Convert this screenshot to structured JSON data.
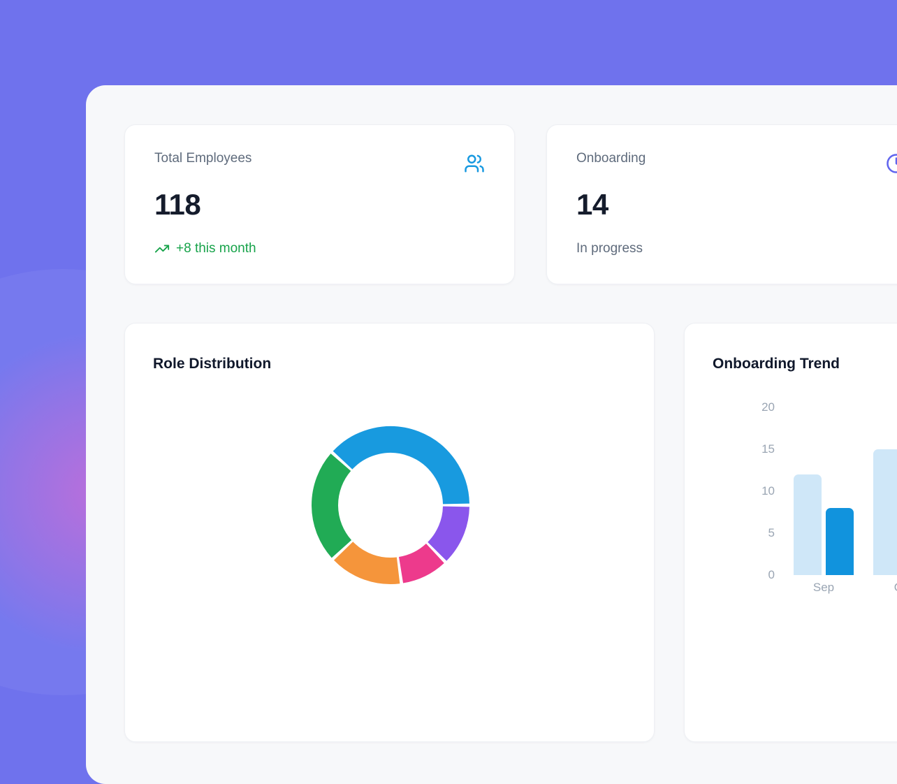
{
  "theme": {
    "background": "#6f72ed",
    "background_glow_pink": "#e768ce",
    "panel_bg": "#f7f8fa",
    "card_bg": "#ffffff",
    "text_dark": "#151c2c",
    "text_muted": "#5f6b7c",
    "axis_text": "#9aa5b3",
    "accent_blue": "#1899e0",
    "accent_indigo": "#6064ee",
    "accent_green": "#17a34a"
  },
  "stats": [
    {
      "label": "Total Employees",
      "value": "118",
      "sub": "+8 this month",
      "sub_style": "positive",
      "icon": "users-icon",
      "icon_color": "#1899e0"
    },
    {
      "label": "Onboarding",
      "value": "14",
      "sub": "In progress",
      "sub_style": "muted",
      "icon": "clock-icon",
      "icon_color": "#6064ee"
    }
  ],
  "chart_data": [
    {
      "type": "donut",
      "title": "Role Distribution",
      "legend": "none",
      "labels_visible": false,
      "start_angle_deg": -48,
      "segments": [
        {
          "name": "blue",
          "color": "#189adf",
          "sweep_deg": 138,
          "share_pct": 38.3
        },
        {
          "name": "purple",
          "color": "#8a56ec",
          "sweep_deg": 46,
          "share_pct": 12.8
        },
        {
          "name": "pink",
          "color": "#ed3a8c",
          "sweep_deg": 36,
          "share_pct": 10.0
        },
        {
          "name": "orange",
          "color": "#f5953b",
          "sweep_deg": 55,
          "share_pct": 15.3
        },
        {
          "name": "green",
          "color": "#21ab55",
          "sweep_deg": 85,
          "share_pct": 23.6
        }
      ]
    },
    {
      "type": "bar",
      "title": "Onboarding Trend",
      "legend": "none",
      "grid": false,
      "categories": [
        "Sep",
        "Oct"
      ],
      "series": [
        {
          "name": "light-blue",
          "color": "#cfe7f8",
          "values": [
            12,
            15
          ]
        },
        {
          "name": "dark-blue",
          "color": "#1193dd",
          "values": [
            8,
            null
          ]
        }
      ],
      "y_ticks": [
        0,
        5,
        10,
        15,
        20
      ],
      "ylim": [
        0,
        20
      ]
    }
  ]
}
